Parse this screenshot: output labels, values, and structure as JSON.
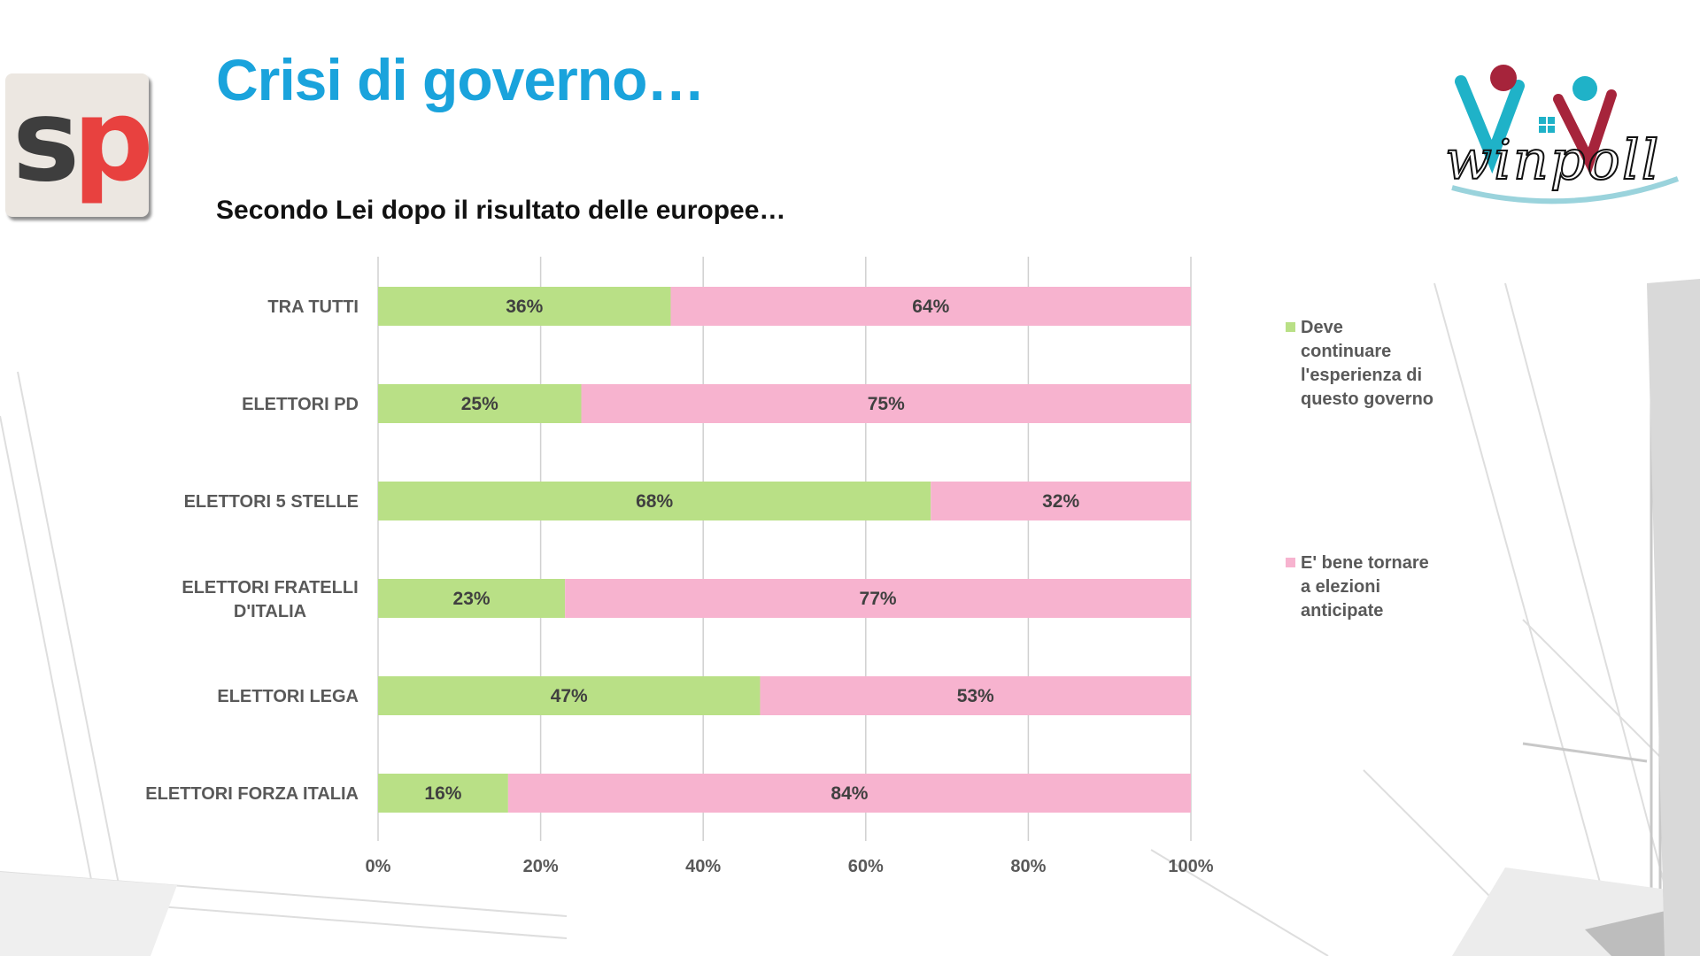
{
  "slide": {
    "title": "Crisi di governo…",
    "subtitle": "Secondo Lei dopo il risultato delle europee…",
    "logo_left": {
      "s": "s",
      "p": "p"
    },
    "logo_right": "winpoll"
  },
  "colors": {
    "title": "#1aa3dc",
    "series_green": "#b9e086",
    "series_pink": "#f7b3cf",
    "axis_text": "#595959",
    "grid": "#d0d0d0"
  },
  "chart_data": {
    "type": "bar",
    "orientation": "horizontal",
    "stacked": "percent",
    "categories": [
      "TRA TUTTI",
      "ELETTORI PD",
      "ELETTORI 5 STELLE",
      "ELETTORI FRATELLI D'ITALIA",
      "ELETTORI LEGA",
      "ELETTORI FORZA ITALIA"
    ],
    "series": [
      {
        "name": "Deve continuare l'esperienza di questo governo",
        "color": "#b9e086",
        "values": [
          36,
          25,
          68,
          23,
          47,
          16
        ]
      },
      {
        "name": "E' bene tornare a elezioni anticipate",
        "color": "#f7b3cf",
        "values": [
          64,
          75,
          32,
          77,
          53,
          84
        ]
      }
    ],
    "data_labels": [
      [
        "36%",
        "25%",
        "68%",
        "23%",
        "47%",
        "16%"
      ],
      [
        "64%",
        "75%",
        "32%",
        "77%",
        "53%",
        "84%"
      ]
    ],
    "xlim": [
      0,
      100
    ],
    "x_ticks": [
      "0%",
      "20%",
      "40%",
      "60%",
      "80%",
      "100%"
    ],
    "grid": true,
    "legend_position": "right"
  }
}
